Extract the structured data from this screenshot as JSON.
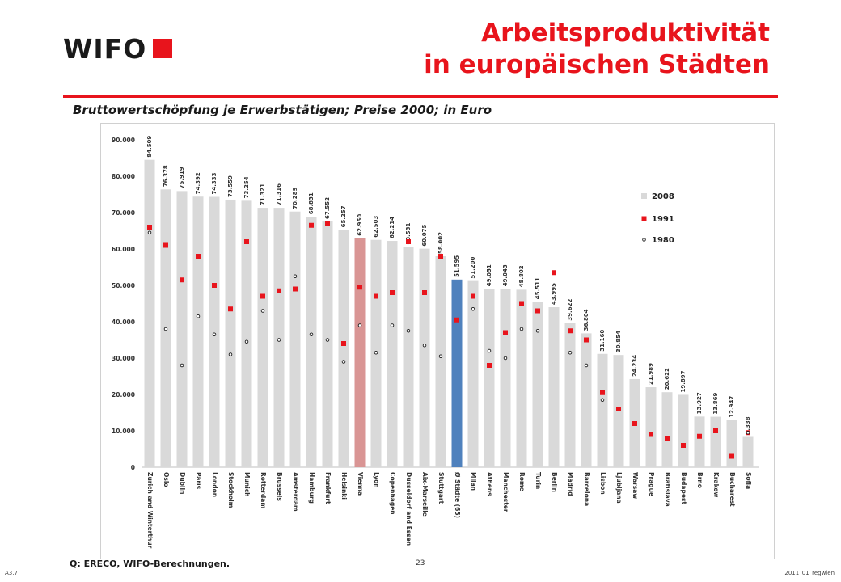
{
  "header": {
    "logo_text": "WIFO",
    "title_line1": "Arbeitsproduktivität",
    "title_line2": "in europäischen Städten",
    "subtitle": "Bruttowertschöpfung je Erwerbstätigen; Preise 2000; in Euro"
  },
  "footer": {
    "source": "Q: ERECO, WIFO-Berechnungen.",
    "page_number": "23",
    "slide_id": "A3.7",
    "file_code": "2011_01_regwien"
  },
  "colors": {
    "accent": "#e8141c",
    "bar_default": "#d9d9d9",
    "bar_vienna": "#d99594",
    "bar_average": "#4f81bd",
    "marker_1991": "#e8141c",
    "marker_1980": "#1a1a1a"
  },
  "chart_data": {
    "type": "bar",
    "ylim": [
      0,
      90000
    ],
    "yticks": [
      0,
      10000,
      20000,
      30000,
      40000,
      50000,
      60000,
      70000,
      80000,
      90000
    ],
    "ytick_labels": [
      "0",
      "10.000",
      "20.000",
      "30.000",
      "40.000",
      "50.000",
      "60.000",
      "70.000",
      "80.000",
      "90.000"
    ],
    "legend_position": "right",
    "categories": [
      "Zurich and Winterthur",
      "Oslo",
      "Dublin",
      "Paris",
      "London",
      "Stockholm",
      "Munich",
      "Rotterdam",
      "Brussels",
      "Amsterdam",
      "Hamburg",
      "Frankfurt",
      "Helsinki",
      "Vienna",
      "Lyon",
      "Copenhagen",
      "Dusseldorf and Essen",
      "Aix-Marseille",
      "Stuttgart",
      "Ø Städte (65)",
      "Milan",
      "Athens",
      "Manchester",
      "Rome",
      "Turin",
      "Berlin",
      "Madrid",
      "Barcelona",
      "Lisbon",
      "Ljubljana",
      "Warsaw",
      "Prague",
      "Bratislava",
      "Budapest",
      "Brno",
      "Krakow",
      "Bucharest",
      "Sofia"
    ],
    "series": [
      {
        "name": "2008",
        "kind": "bar",
        "values": [
          84509,
          76378,
          75919,
          74392,
          74333,
          73559,
          73254,
          71321,
          71316,
          70289,
          68831,
          67552,
          65257,
          62950,
          62503,
          62214,
          60531,
          60075,
          58002,
          51595,
          51200,
          49051,
          49043,
          48802,
          45511,
          43995,
          39622,
          36804,
          31160,
          30854,
          24234,
          21989,
          20622,
          19897,
          13927,
          13869,
          12947,
          8338
        ],
        "value_labels": [
          "84.509",
          "76.378",
          "75.919",
          "74.392",
          "74.333",
          "73.559",
          "73.254",
          "71.321",
          "71.316",
          "70.289",
          "68.831",
          "67.552",
          "65.257",
          "62.950",
          "62.503",
          "62.214",
          "60.531",
          "60.075",
          "58.002",
          "51.595",
          "51.200",
          "49.051",
          "49.043",
          "48.802",
          "45.511",
          "43.995",
          "39.622",
          "36.804",
          "31.160",
          "30.854",
          "24.234",
          "21.989",
          "20.622",
          "19.897",
          "13.927",
          "13.869",
          "12.947",
          "8.338"
        ]
      },
      {
        "name": "1991",
        "kind": "square-marker",
        "values": [
          66000,
          61000,
          51500,
          58000,
          50000,
          43500,
          62000,
          47000,
          48500,
          49000,
          66500,
          67000,
          34000,
          49500,
          47000,
          48000,
          62000,
          48000,
          58000,
          40500,
          47000,
          28000,
          37000,
          45000,
          43000,
          53500,
          37500,
          35000,
          20500,
          16000,
          12000,
          9000,
          8000,
          6000,
          8500,
          10000,
          3000,
          9500
        ]
      },
      {
        "name": "1980",
        "kind": "circle-marker",
        "values": [
          64500,
          38000,
          28000,
          41500,
          36500,
          31000,
          34500,
          43000,
          35000,
          52500,
          36500,
          35000,
          29000,
          39000,
          31500,
          39000,
          37500,
          33500,
          30500,
          0,
          43500,
          32000,
          30000,
          38000,
          37500,
          0,
          31500,
          28000,
          18500,
          0,
          0,
          0,
          0,
          0,
          0,
          0,
          0,
          9500
        ]
      }
    ],
    "highlight": {
      "Vienna": "bar_vienna",
      "Ø Städte (65)": "bar_average"
    }
  }
}
